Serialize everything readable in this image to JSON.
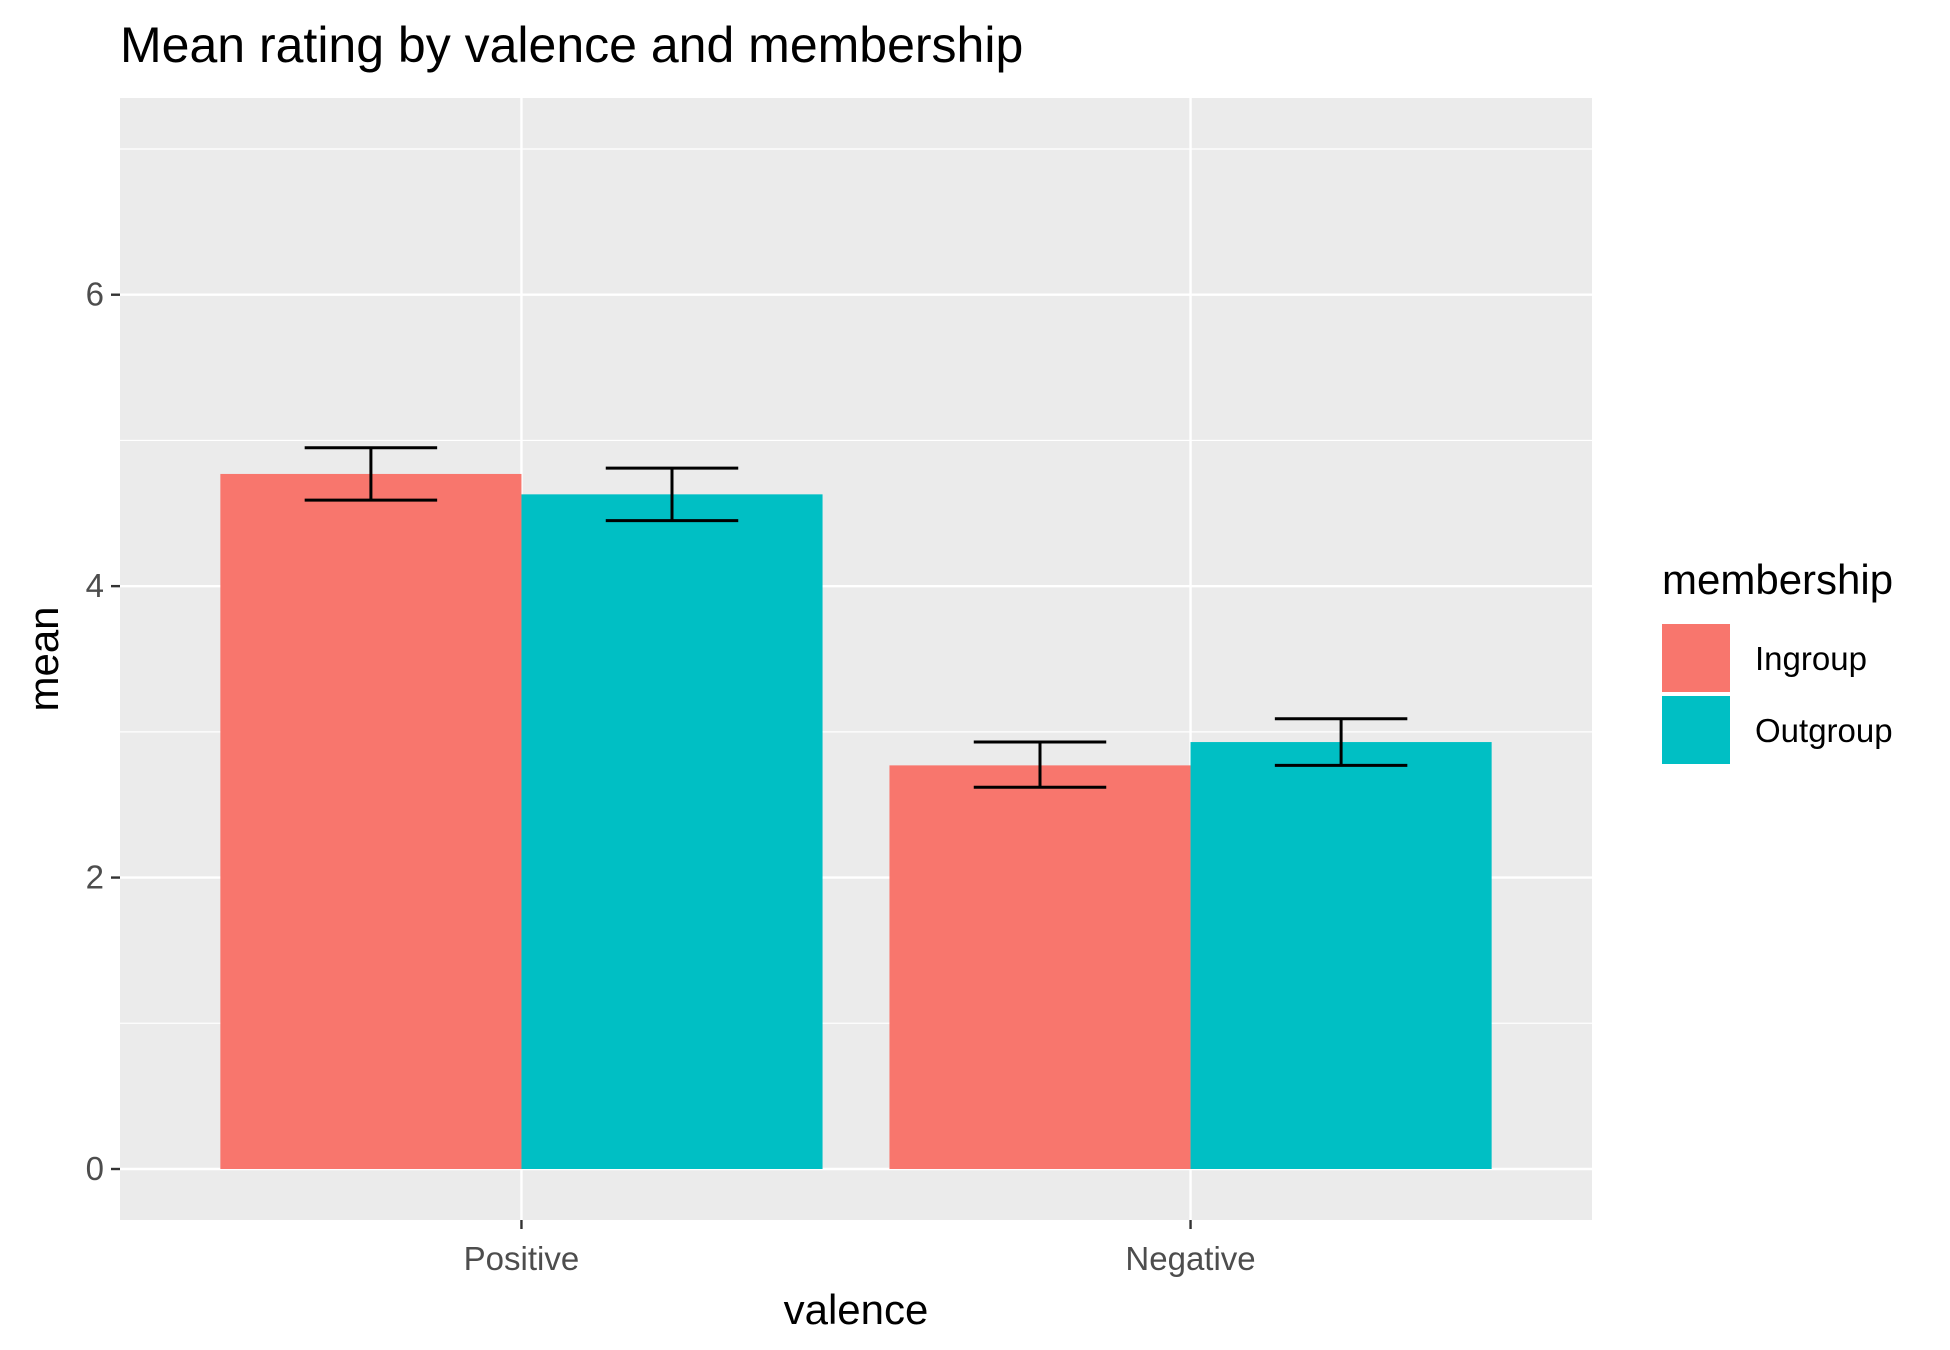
{
  "chart_data": {
    "type": "bar",
    "title": "Mean rating by valence and membership",
    "xlabel": "valence",
    "ylabel": "mean",
    "categories": [
      "Positive",
      "Negative"
    ],
    "series": [
      {
        "name": "Ingroup",
        "color": "#F8766D",
        "values": [
          4.77,
          2.77
        ],
        "error_low": [
          4.59,
          2.62
        ],
        "error_high": [
          4.95,
          2.93
        ]
      },
      {
        "name": "Outgroup",
        "color": "#00BFC4",
        "values": [
          4.63,
          2.93
        ],
        "error_low": [
          4.45,
          2.77
        ],
        "error_high": [
          4.81,
          3.09
        ]
      }
    ],
    "yticks": [
      0,
      2,
      4,
      6
    ],
    "ytick_labels": [
      "0",
      "2",
      "4",
      "6"
    ],
    "ylim": [
      -0.35,
      7.35
    ],
    "grid": true,
    "panel_color": "#EBEBEB",
    "legend": {
      "title": "membership",
      "position": "right"
    }
  }
}
